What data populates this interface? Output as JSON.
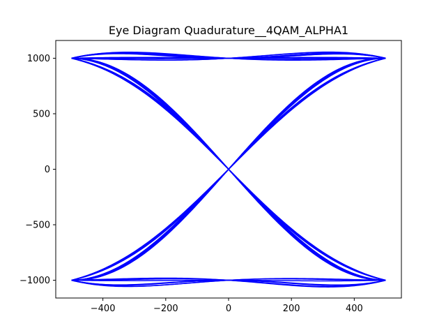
{
  "chart_data": {
    "type": "line",
    "title": "Eye Diagram Quadurature__4QAM_ALPHA1",
    "xlabel": "",
    "ylabel": "",
    "xlim": [
      -550,
      550
    ],
    "ylim": [
      -1160,
      1160
    ],
    "xticks": [
      -400,
      -200,
      0,
      200,
      400
    ],
    "xtick_labels": [
      "−400",
      "−200",
      "0",
      "200",
      "400"
    ],
    "yticks": [
      1000,
      500,
      0,
      -500,
      -1000
    ],
    "ytick_labels": [
      "1000",
      "500",
      "0",
      "−500",
      "−1000"
    ],
    "grid": false,
    "legend": "none",
    "line_color": "#0000ff",
    "symbol_period": 1000,
    "amplitude": 1000,
    "rolloff_alpha": 1,
    "t_range": [
      -500,
      500
    ],
    "level_transitions": [
      {
        "from": 1000,
        "to": 1000
      },
      {
        "from": 1000,
        "to": -1000
      },
      {
        "from": -1000,
        "to": 1000
      },
      {
        "from": -1000,
        "to": -1000
      }
    ]
  }
}
